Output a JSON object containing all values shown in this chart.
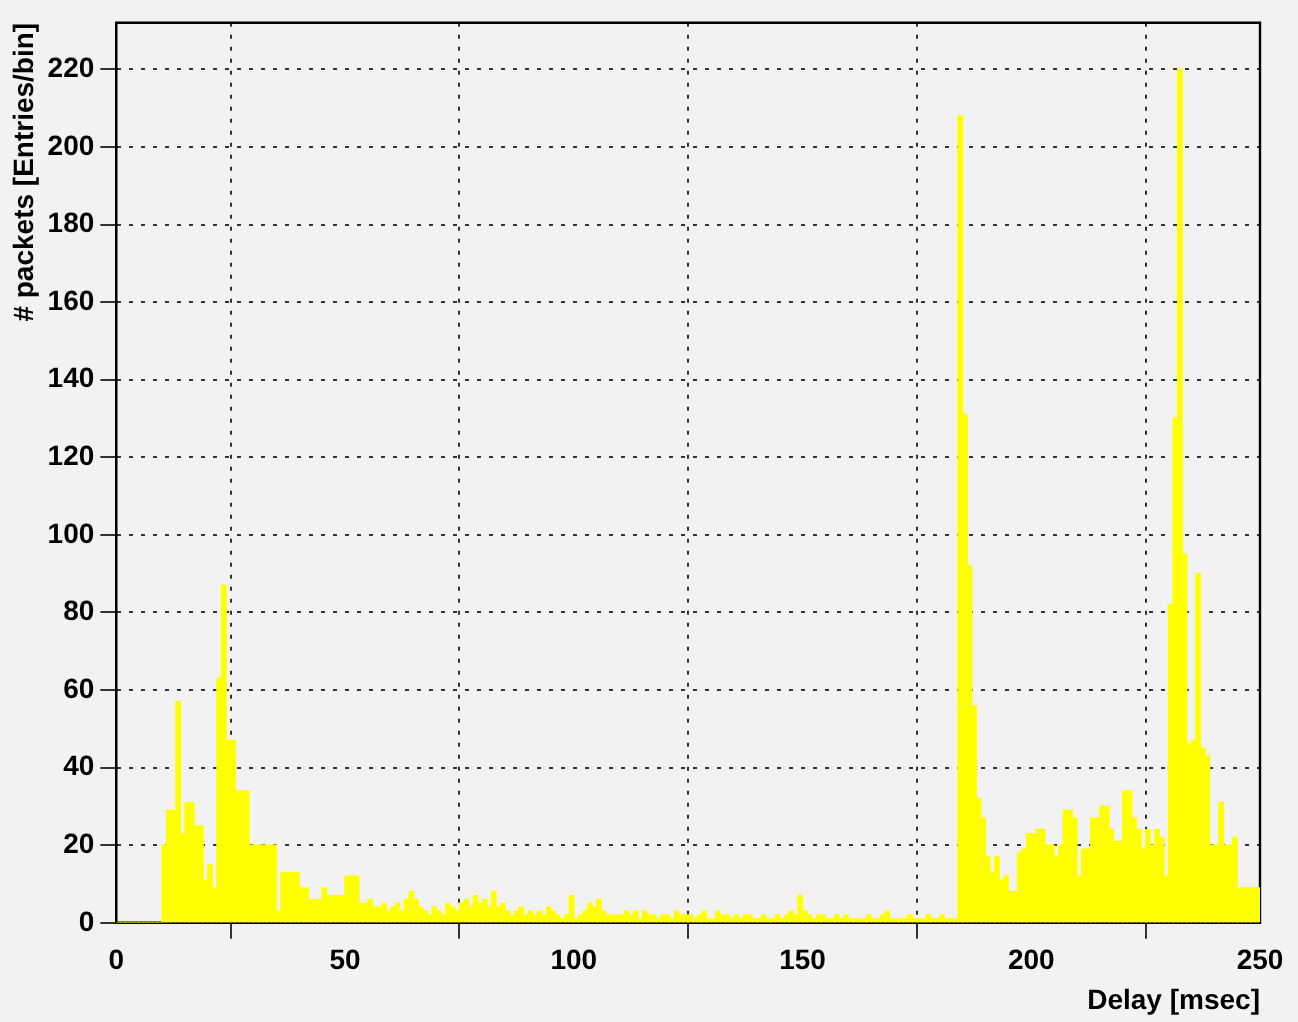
{
  "chart_data": {
    "type": "histogram",
    "xlabel": "Delay [msec]",
    "ylabel": "# packets [Entries/bin]",
    "color": "#ffff00",
    "bins": [
      0,
      1,
      2,
      3,
      4,
      5,
      6,
      7,
      8,
      9,
      10,
      11,
      12,
      13,
      14,
      15,
      16,
      17,
      18,
      19,
      20,
      21,
      22,
      23,
      24,
      25,
      26,
      27,
      28,
      29,
      30,
      31,
      32,
      33,
      34,
      35,
      36,
      37,
      38,
      39,
      40,
      41,
      42,
      43,
      44,
      45,
      46,
      47,
      48,
      49,
      50,
      51,
      52,
      53,
      54,
      55,
      56,
      57,
      58,
      59,
      60,
      61,
      62,
      63,
      64,
      65,
      66,
      67,
      68,
      69,
      70,
      71,
      72,
      73,
      74,
      75,
      76,
      77,
      78,
      79,
      80,
      81,
      82,
      83,
      84,
      85,
      86,
      87,
      88,
      89,
      90,
      91,
      92,
      93,
      94,
      95,
      96,
      97,
      98,
      99,
      100,
      101,
      102,
      103,
      104,
      105,
      106,
      107,
      108,
      109,
      110,
      111,
      112,
      113,
      114,
      115,
      116,
      117,
      118,
      119,
      120,
      121,
      122,
      123,
      124,
      125,
      126,
      127,
      128,
      129,
      130,
      131,
      132,
      133,
      134,
      135,
      136,
      137,
      138,
      139,
      140,
      141,
      142,
      143,
      144,
      145,
      146,
      147,
      148,
      149,
      150,
      151,
      152,
      153,
      154,
      155,
      156,
      157,
      158,
      159,
      160,
      161,
      162,
      163,
      164,
      165,
      166,
      167,
      168,
      169,
      170,
      171,
      172,
      173,
      174,
      175,
      176,
      177,
      178,
      179,
      180,
      181,
      182,
      183,
      184,
      185,
      186,
      187,
      188,
      189,
      190,
      191,
      192,
      193,
      194,
      195,
      196,
      197,
      198,
      199,
      200,
      201,
      202,
      203,
      204,
      205,
      206,
      207,
      208,
      209,
      210,
      211,
      212,
      213,
      214,
      215,
      216,
      217,
      218,
      219,
      220,
      221,
      222,
      223,
      224,
      225,
      226,
      227,
      228,
      229,
      230,
      231,
      232,
      233,
      234,
      235,
      236,
      237,
      238,
      239,
      240,
      241,
      242,
      243,
      244,
      245,
      246,
      247,
      248,
      249,
      250
    ],
    "values": [
      0,
      0,
      0,
      0,
      0,
      0,
      0,
      0,
      0,
      0,
      20,
      29,
      29,
      57,
      23,
      31,
      31,
      25,
      25,
      11,
      15,
      9,
      63,
      87,
      47,
      47,
      34,
      34,
      34,
      20,
      20,
      20,
      20,
      20,
      20,
      3,
      13,
      13,
      13,
      13,
      9,
      9,
      6,
      6,
      6,
      9,
      7,
      7,
      7,
      7,
      12,
      12,
      12,
      5,
      5,
      6,
      4,
      4,
      5,
      3,
      4,
      5,
      3,
      6,
      8,
      6,
      4,
      3,
      2,
      4,
      3,
      2,
      5,
      4,
      3,
      5,
      6,
      4,
      7,
      5,
      6,
      4,
      8,
      4,
      5,
      3,
      2,
      3,
      4,
      2,
      3,
      2,
      3,
      2,
      4,
      3,
      2,
      1,
      2,
      7,
      1,
      2,
      3,
      5,
      4,
      6,
      3,
      2,
      2,
      2,
      2,
      3,
      2,
      3,
      1,
      3,
      2,
      2,
      1,
      2,
      2,
      1,
      3,
      2,
      2,
      2,
      1,
      2,
      3,
      1,
      1,
      3,
      2,
      2,
      1,
      2,
      1,
      2,
      2,
      1,
      1,
      2,
      1,
      1,
      2,
      1,
      2,
      3,
      2,
      7,
      3,
      2,
      1,
      2,
      2,
      1,
      1,
      2,
      1,
      2,
      1,
      1,
      1,
      1,
      2,
      1,
      1,
      2,
      3,
      1,
      1,
      1,
      1,
      2,
      1,
      1,
      1,
      2,
      1,
      1,
      2,
      1,
      1,
      1,
      208,
      131,
      92,
      56,
      32,
      27,
      17,
      13,
      17,
      11,
      12,
      8,
      8,
      18,
      19,
      23,
      23,
      24,
      24,
      20,
      20,
      17,
      20,
      29,
      29,
      27,
      12,
      19,
      19,
      27,
      27,
      30,
      30,
      24,
      21,
      21,
      34,
      34,
      27,
      24,
      19,
      24,
      20,
      24,
      22,
      12,
      82,
      130,
      220,
      95,
      46,
      47,
      90,
      45,
      43,
      20,
      20,
      31,
      20,
      20,
      22,
      9,
      9,
      9,
      9,
      9
    ],
    "xlim": [
      0,
      250
    ],
    "xticks": [
      0,
      50,
      100,
      150,
      200,
      250
    ],
    "ylim": [
      0,
      232
    ],
    "yticks": [
      0,
      20,
      40,
      60,
      80,
      100,
      120,
      140,
      160,
      180,
      200,
      220
    ],
    "grid": true
  }
}
